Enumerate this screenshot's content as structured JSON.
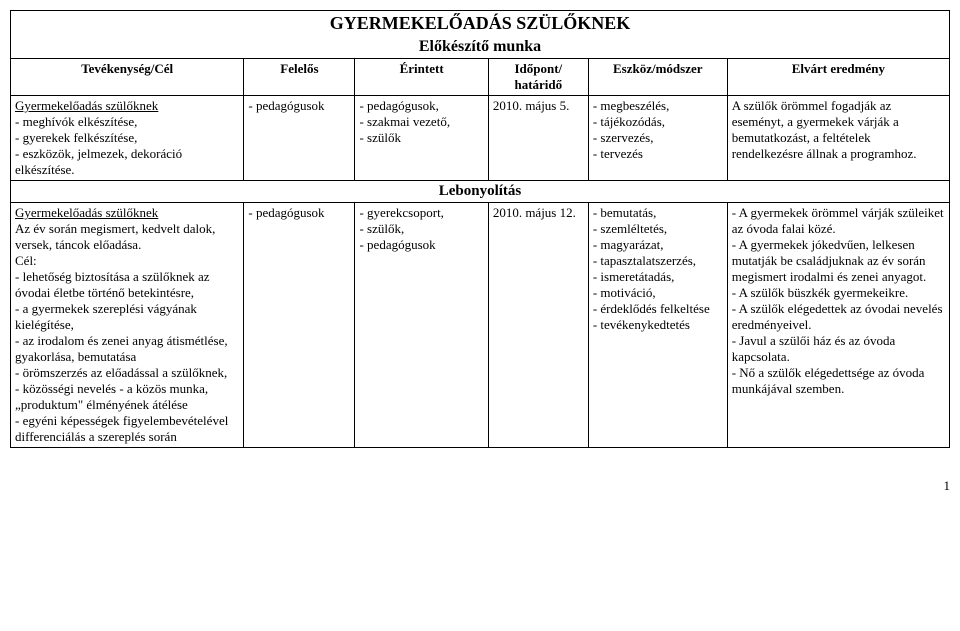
{
  "title": "GYERMEKELŐADÁS SZÜLŐKNEK",
  "subtitle": "Előkészítő munka",
  "headers": {
    "activity": "Tevékenység/Cél",
    "responsible": "Felelős",
    "affected": "Érintett",
    "time": "Időpont/ határidő",
    "tool": "Eszköz/módszer",
    "result": "Elvárt eredmény"
  },
  "row1": {
    "activity_heading": "Gyermekelőadás szülőknek",
    "activity_body": "- meghívók elkészítése,\n- gyerekek felkészítése,\n- eszközök, jelmezek, dekoráció elkészítése.",
    "responsible": "- pedagógusok",
    "affected": "- pedagógusok,\n- szakmai vezető,\n- szülők",
    "time": "2010. május 5.",
    "tool": "- megbeszélés,\n- tájékozódás,\n- szervezés,\n- tervezés",
    "result": "A szülők örömmel fogadják az eseményt, a gyermekek várják a bemutatkozást, a feltételek rendelkezésre állnak a programhoz."
  },
  "section2": "Lebonyolítás",
  "row2": {
    "activity_heading": "Gyermekelőadás szülőknek",
    "activity_body": "Az év során megismert, kedvelt dalok, versek, táncok előadása.\nCél:\n- lehetőség biztosítása a szülőknek az óvodai életbe történő betekintésre,\n- a gyermekek szereplési vágyának kielégítése,\n- az irodalom és zenei anyag átismétlése, gyakorlása, bemutatása\n- örömszerzés az előadással a szülőknek,\n- közösségi nevelés - a közös munka, „produktum\" élményének átélése\n- egyéni képességek figyelembevételével differenciálás a szereplés során",
    "responsible": "- pedagógusok",
    "affected": "- gyerekcsoport,\n- szülők,\n- pedagógusok",
    "time": "2010. május 12.",
    "tool": "- bemutatás,\n- szemléltetés,\n- magyarázat,\n- tapasztalatszerzés,\n- ismeretátadás,\n- motiváció,\n- érdeklődés felkeltése\n- tevékenykedtetés",
    "result": "- A gyermekek örömmel várják szüleiket az óvoda falai közé.\n- A gyermekek jókedvűen, lelkesen mutatják be családjuknak az év során megismert irodalmi és zenei anyagot.\n- A szülők büszkék gyermekeikre.\n- A szülők elégedettek az óvodai nevelés eredményeivel.\n- Javul a szülői ház és az óvoda kapcsolata.\n- Nő a szülők elégedettsége az óvoda munkájával szemben."
  },
  "pagenum": "1"
}
